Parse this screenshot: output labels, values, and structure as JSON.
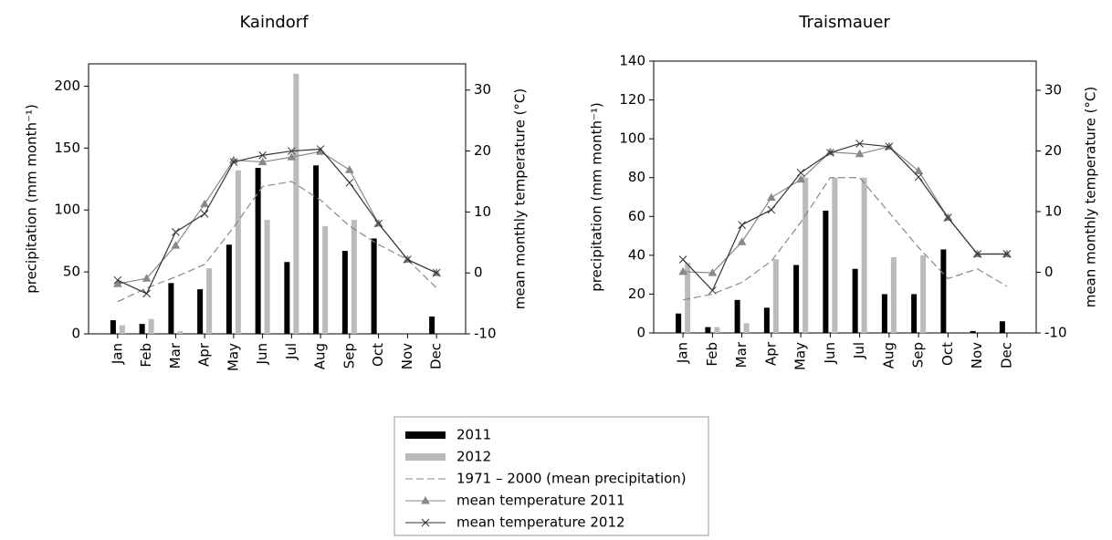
{
  "chart_data": [
    {
      "type": "bar",
      "title": "Kaindorf",
      "categories": [
        "Jan",
        "Feb",
        "Mar",
        "Apr",
        "May",
        "Jun",
        "Jul",
        "Aug",
        "Sep",
        "Oct",
        "Nov",
        "Dec"
      ],
      "ylabel": "precipitation (mm month⁻¹)",
      "y2label": "mean monthly temperature (°C)",
      "ylim": [
        0,
        218
      ],
      "yticks": [
        0,
        50,
        100,
        150,
        200
      ],
      "y2lim": [
        -10,
        34.3
      ],
      "y2ticks": [
        -10,
        0,
        10,
        20,
        30
      ],
      "series": [
        {
          "name": "2011",
          "type": "bar",
          "color": "#000000",
          "values": [
            11,
            8,
            41,
            36,
            72,
            134,
            58,
            136,
            67,
            77,
            0,
            14
          ]
        },
        {
          "name": "2012",
          "type": "bar",
          "color": "#bbbbbb",
          "values": [
            7,
            12,
            2,
            53,
            132,
            92,
            210,
            87,
            92,
            0,
            0,
            0
          ]
        },
        {
          "name": "1971 – 2000  (mean precipitation)",
          "type": "line",
          "dash": true,
          "color": "#888888",
          "values": [
            26,
            37,
            46,
            56,
            86,
            119,
            123,
            108,
            87,
            72,
            60,
            37
          ]
        },
        {
          "name": "mean temperature 2011",
          "type": "line",
          "marker": "triangle",
          "axis": "y2",
          "color": "#888888",
          "values": [
            -1.8,
            -0.9,
            4.5,
            11.3,
            18.5,
            18.2,
            19,
            19.9,
            16.9,
            8.1,
            2.2,
            0
          ]
        },
        {
          "name": "mean temperature 2012",
          "type": "line",
          "marker": "x",
          "axis": "y2",
          "color": "#333333",
          "values": [
            -1.2,
            -3.4,
            6.7,
            9.7,
            18.2,
            19.3,
            20,
            20.3,
            14.8,
            8.1,
            2.2,
            0
          ]
        }
      ]
    },
    {
      "type": "bar",
      "title": "Traismauer",
      "categories": [
        "Jan",
        "Feb",
        "Mar",
        "Apr",
        "May",
        "Jun",
        "Jul",
        "Aug",
        "Sep",
        "Oct",
        "Nov",
        "Dec"
      ],
      "ylabel": "precipitation (mm month⁻¹)",
      "y2label": "mean monthly temperature (°C)",
      "ylim": [
        0,
        140
      ],
      "yticks": [
        0,
        20,
        40,
        60,
        80,
        100,
        120,
        140
      ],
      "y2lim": [
        -10,
        34.8
      ],
      "y2ticks": [
        -10,
        0,
        10,
        20,
        30
      ],
      "series": [
        {
          "name": "2011",
          "type": "bar",
          "color": "#000000",
          "values": [
            10,
            3,
            17,
            13,
            35,
            63,
            33,
            20,
            20,
            43,
            1,
            6
          ]
        },
        {
          "name": "2012",
          "type": "bar",
          "color": "#bbbbbb",
          "values": [
            36,
            3,
            5,
            38,
            80,
            80,
            80,
            39,
            40,
            0,
            0,
            0
          ]
        },
        {
          "name": "1971 – 2000  (mean precipitation)",
          "type": "line",
          "dash": true,
          "color": "#888888",
          "values": [
            17,
            20,
            26,
            37,
            57,
            80,
            80,
            62,
            44,
            28,
            33,
            24
          ]
        },
        {
          "name": "mean temperature 2011",
          "type": "line",
          "marker": "triangle",
          "axis": "y2",
          "color": "#888888",
          "values": [
            0.1,
            -0.1,
            5,
            12.3,
            15.3,
            19.8,
            19.5,
            20.7,
            16.7,
            9,
            3,
            3
          ]
        },
        {
          "name": "mean temperature 2012",
          "type": "line",
          "marker": "x",
          "axis": "y2",
          "color": "#333333",
          "values": [
            2.1,
            -3,
            7.8,
            10.3,
            16.4,
            19.7,
            21.2,
            20.7,
            15.7,
            9,
            3,
            3
          ]
        }
      ]
    }
  ]
}
